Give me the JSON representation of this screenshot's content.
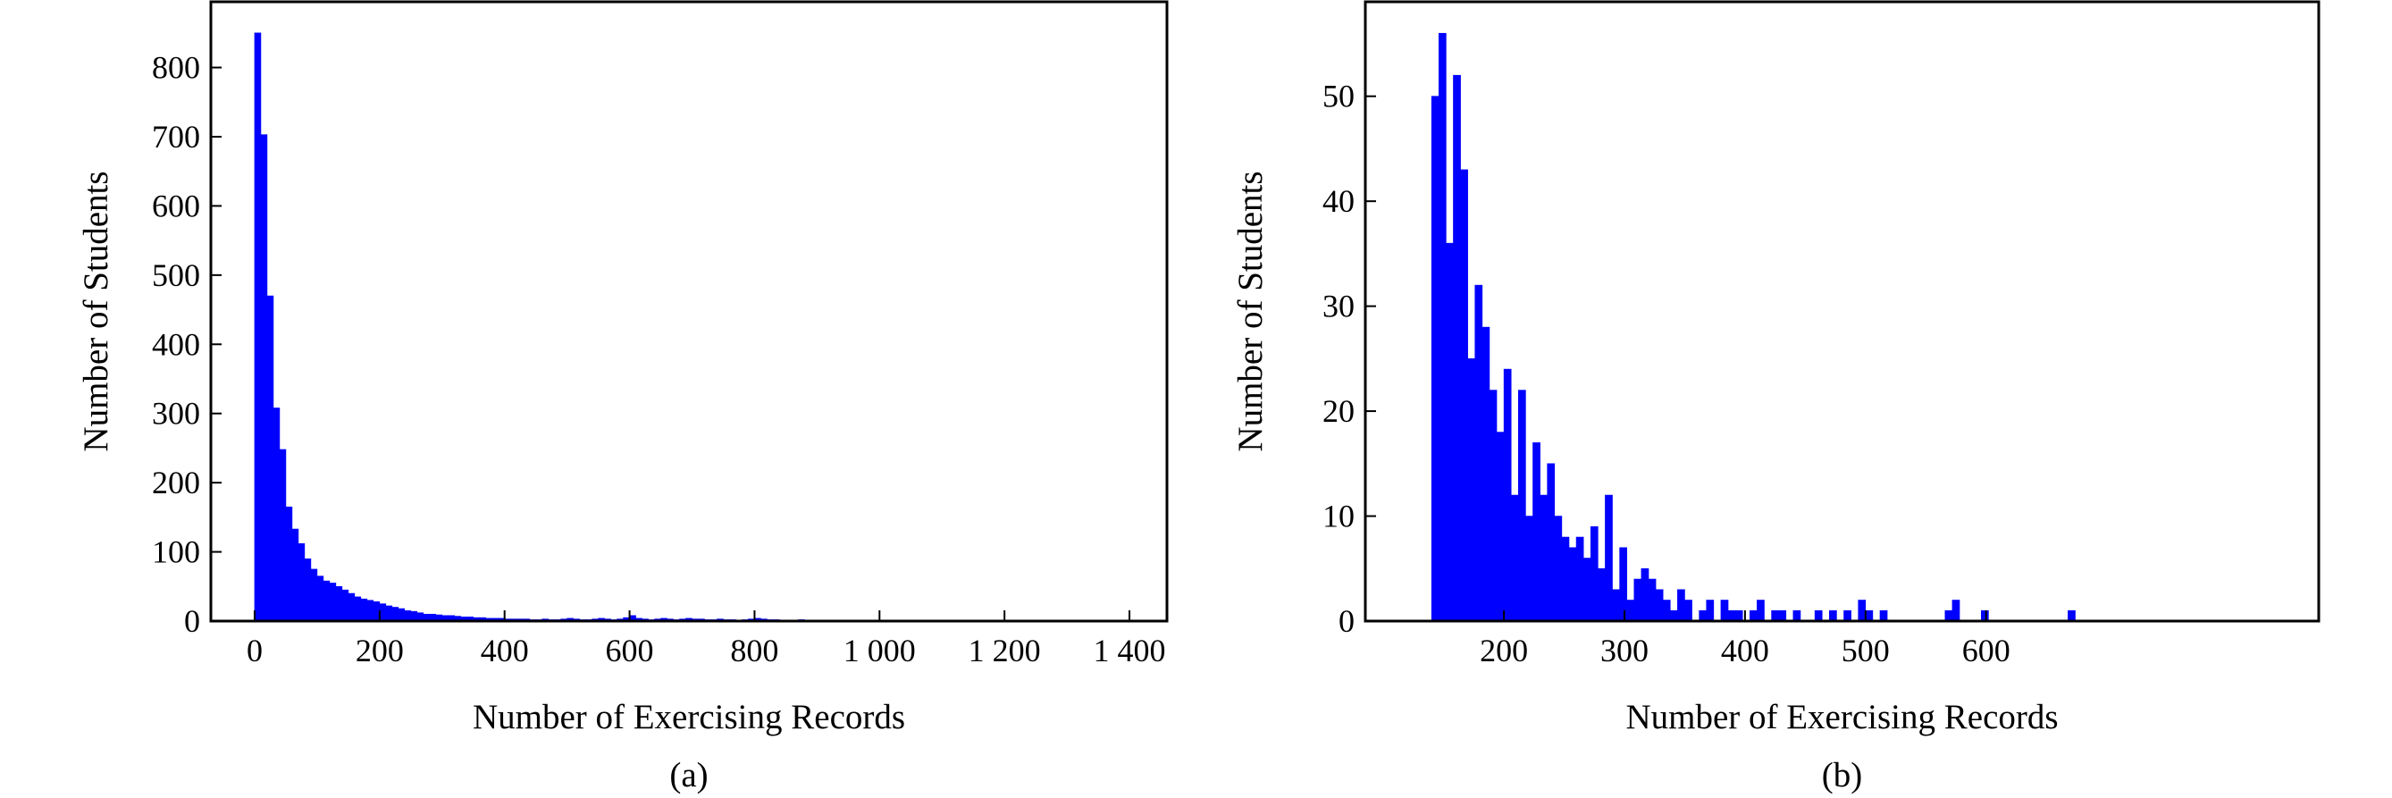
{
  "chart_data": [
    {
      "type": "histogram",
      "caption": "(a)",
      "xlabel": "Number of Exercising Records",
      "ylabel": "Number of Students",
      "color": "#0000ff",
      "bins": [
        0,
        10,
        20,
        30,
        40,
        50,
        60,
        70,
        80,
        90,
        100,
        110,
        120,
        130,
        140,
        150,
        160,
        170,
        180,
        190,
        200,
        210,
        220,
        230,
        240,
        250,
        260,
        270,
        280,
        290,
        300,
        310,
        320,
        330,
        340,
        350,
        360,
        370,
        380,
        390,
        400,
        410,
        420,
        430,
        440,
        450,
        460,
        470,
        480,
        490,
        500,
        510,
        520,
        530,
        540,
        550,
        560,
        570,
        580,
        590,
        600,
        610,
        620,
        630,
        640,
        650,
        660,
        670,
        680,
        690,
        700,
        710,
        720,
        730,
        740,
        750,
        760,
        770,
        780,
        790,
        800,
        810,
        820,
        830,
        840,
        850,
        860,
        870,
        880
      ],
      "counts": [
        850,
        703,
        470,
        308,
        248,
        165,
        133,
        112,
        90,
        75,
        65,
        58,
        55,
        50,
        45,
        40,
        35,
        32,
        30,
        28,
        25,
        22,
        20,
        18,
        15,
        14,
        12,
        10,
        10,
        9,
        8,
        8,
        7,
        6,
        6,
        5,
        5,
        4,
        4,
        4,
        3,
        3,
        3,
        3,
        2,
        2,
        3,
        2,
        2,
        3,
        4,
        3,
        2,
        2,
        3,
        4,
        3,
        2,
        3,
        5,
        8,
        4,
        3,
        2,
        3,
        4,
        3,
        2,
        3,
        4,
        3,
        3,
        2,
        2,
        3,
        2,
        2,
        1,
        2,
        3,
        4,
        3,
        2,
        2,
        1,
        1,
        1,
        2
      ],
      "xlim": [
        -70,
        1460
      ],
      "ylim": [
        0,
        895
      ],
      "xticks": [
        0,
        200,
        400,
        600,
        800,
        {
          "value": 1000,
          "label": "1 000"
        },
        {
          "value": 1200,
          "label": "1 200"
        },
        {
          "value": 1400,
          "label": "1 400"
        }
      ],
      "yticks": [
        0,
        100,
        200,
        300,
        400,
        500,
        600,
        700,
        800
      ]
    },
    {
      "type": "histogram",
      "caption": "(b)",
      "xlabel": "Number of Exercising Records",
      "ylabel": "Number of Students",
      "color": "#0000ff",
      "bins": [
        140,
        146,
        152,
        158,
        164,
        170,
        176,
        182,
        188,
        194,
        200,
        206,
        212,
        218,
        224,
        230,
        236,
        242,
        248,
        254,
        260,
        266,
        272,
        278,
        284,
        290,
        296,
        302,
        308,
        314,
        320,
        326,
        332,
        338,
        344,
        350,
        356,
        362,
        368,
        374,
        380,
        386,
        392,
        398,
        404,
        410,
        416,
        422,
        428,
        434,
        440,
        446,
        452,
        458,
        464,
        470,
        476,
        482,
        488,
        494,
        500,
        506,
        512,
        518,
        524,
        530,
        536,
        542,
        548,
        554,
        560,
        566,
        572,
        578,
        584,
        590,
        596,
        602,
        608,
        614,
        620,
        626,
        632,
        638,
        644,
        650,
        656,
        662,
        668,
        674,
        680
      ],
      "counts": [
        50,
        56,
        36,
        52,
        43,
        25,
        32,
        28,
        22,
        18,
        24,
        12,
        22,
        10,
        17,
        12,
        15,
        10,
        8,
        7,
        8,
        6,
        9,
        5,
        12,
        3,
        7,
        2,
        4,
        5,
        4,
        3,
        2,
        1,
        3,
        2,
        0,
        1,
        2,
        0,
        2,
        1,
        1,
        0,
        1,
        2,
        0,
        1,
        1,
        0,
        1,
        0,
        0,
        1,
        0,
        1,
        0,
        1,
        0,
        2,
        1,
        0,
        1,
        0,
        0,
        0,
        0,
        0,
        0,
        0,
        0,
        1,
        2,
        0,
        0,
        0,
        1,
        0,
        0,
        0,
        0,
        0,
        0,
        0,
        0,
        0,
        0,
        0,
        1,
        0
      ],
      "xlim": [
        85,
        876
      ],
      "ylim": [
        0,
        59
      ],
      "xticks": [
        200,
        300,
        400,
        500,
        600
      ],
      "yticks": [
        0,
        10,
        20,
        30,
        40,
        50
      ]
    }
  ]
}
